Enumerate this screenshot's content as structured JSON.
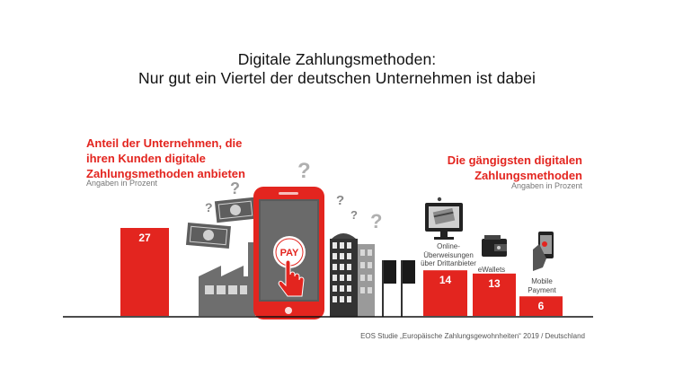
{
  "title_line1": "Digitale Zahlungsmethoden:",
  "title_line2": "Nur gut ein Viertel der deutschen Unternehmen ist dabei",
  "left_heading_lines": [
    "Anteil der Unternehmen, die",
    "ihren Kunden digitale",
    "Zahlungsmethoden anbieten"
  ],
  "left_unit": "Angaben in Prozent",
  "right_heading_lines": [
    "Die gängigsten digitalen",
    "Zahlungsmethoden"
  ],
  "right_unit": "Angaben in Prozent",
  "pay_label": "PAY",
  "source": "EOS Studie „Europäische Zahlungsgewohnheiten“ 2019 / Deutschland",
  "colors": {
    "accent": "#e3251f",
    "text": "#111111",
    "gray": "#6e6e6e",
    "baseline": "#111111"
  },
  "icons": [
    "question-mark-icon",
    "banknote-icon",
    "factory-icon",
    "smartphone-icon",
    "hand-pointer-icon",
    "office-building-icon",
    "flag-icon",
    "monitor-card-icon",
    "wallet-icon",
    "phone-in-hand-icon"
  ],
  "chart_data": [
    {
      "type": "bar",
      "categories": [
        ""
      ],
      "values": [
        27
      ],
      "unit": "%",
      "ylim": [
        0,
        27
      ]
    },
    {
      "type": "bar",
      "categories": [
        "Online-Überweisungen über Drittanbieter",
        "eWallets",
        "Mobile Payment"
      ],
      "category_label_lines": [
        [
          "Online-",
          "Überweisungen",
          "über Drittanbieter"
        ],
        [
          "eWallets"
        ],
        [
          "Mobile",
          "Payment"
        ]
      ],
      "values": [
        14,
        13,
        6
      ],
      "unit": "%",
      "ylim": [
        0,
        27
      ]
    }
  ]
}
